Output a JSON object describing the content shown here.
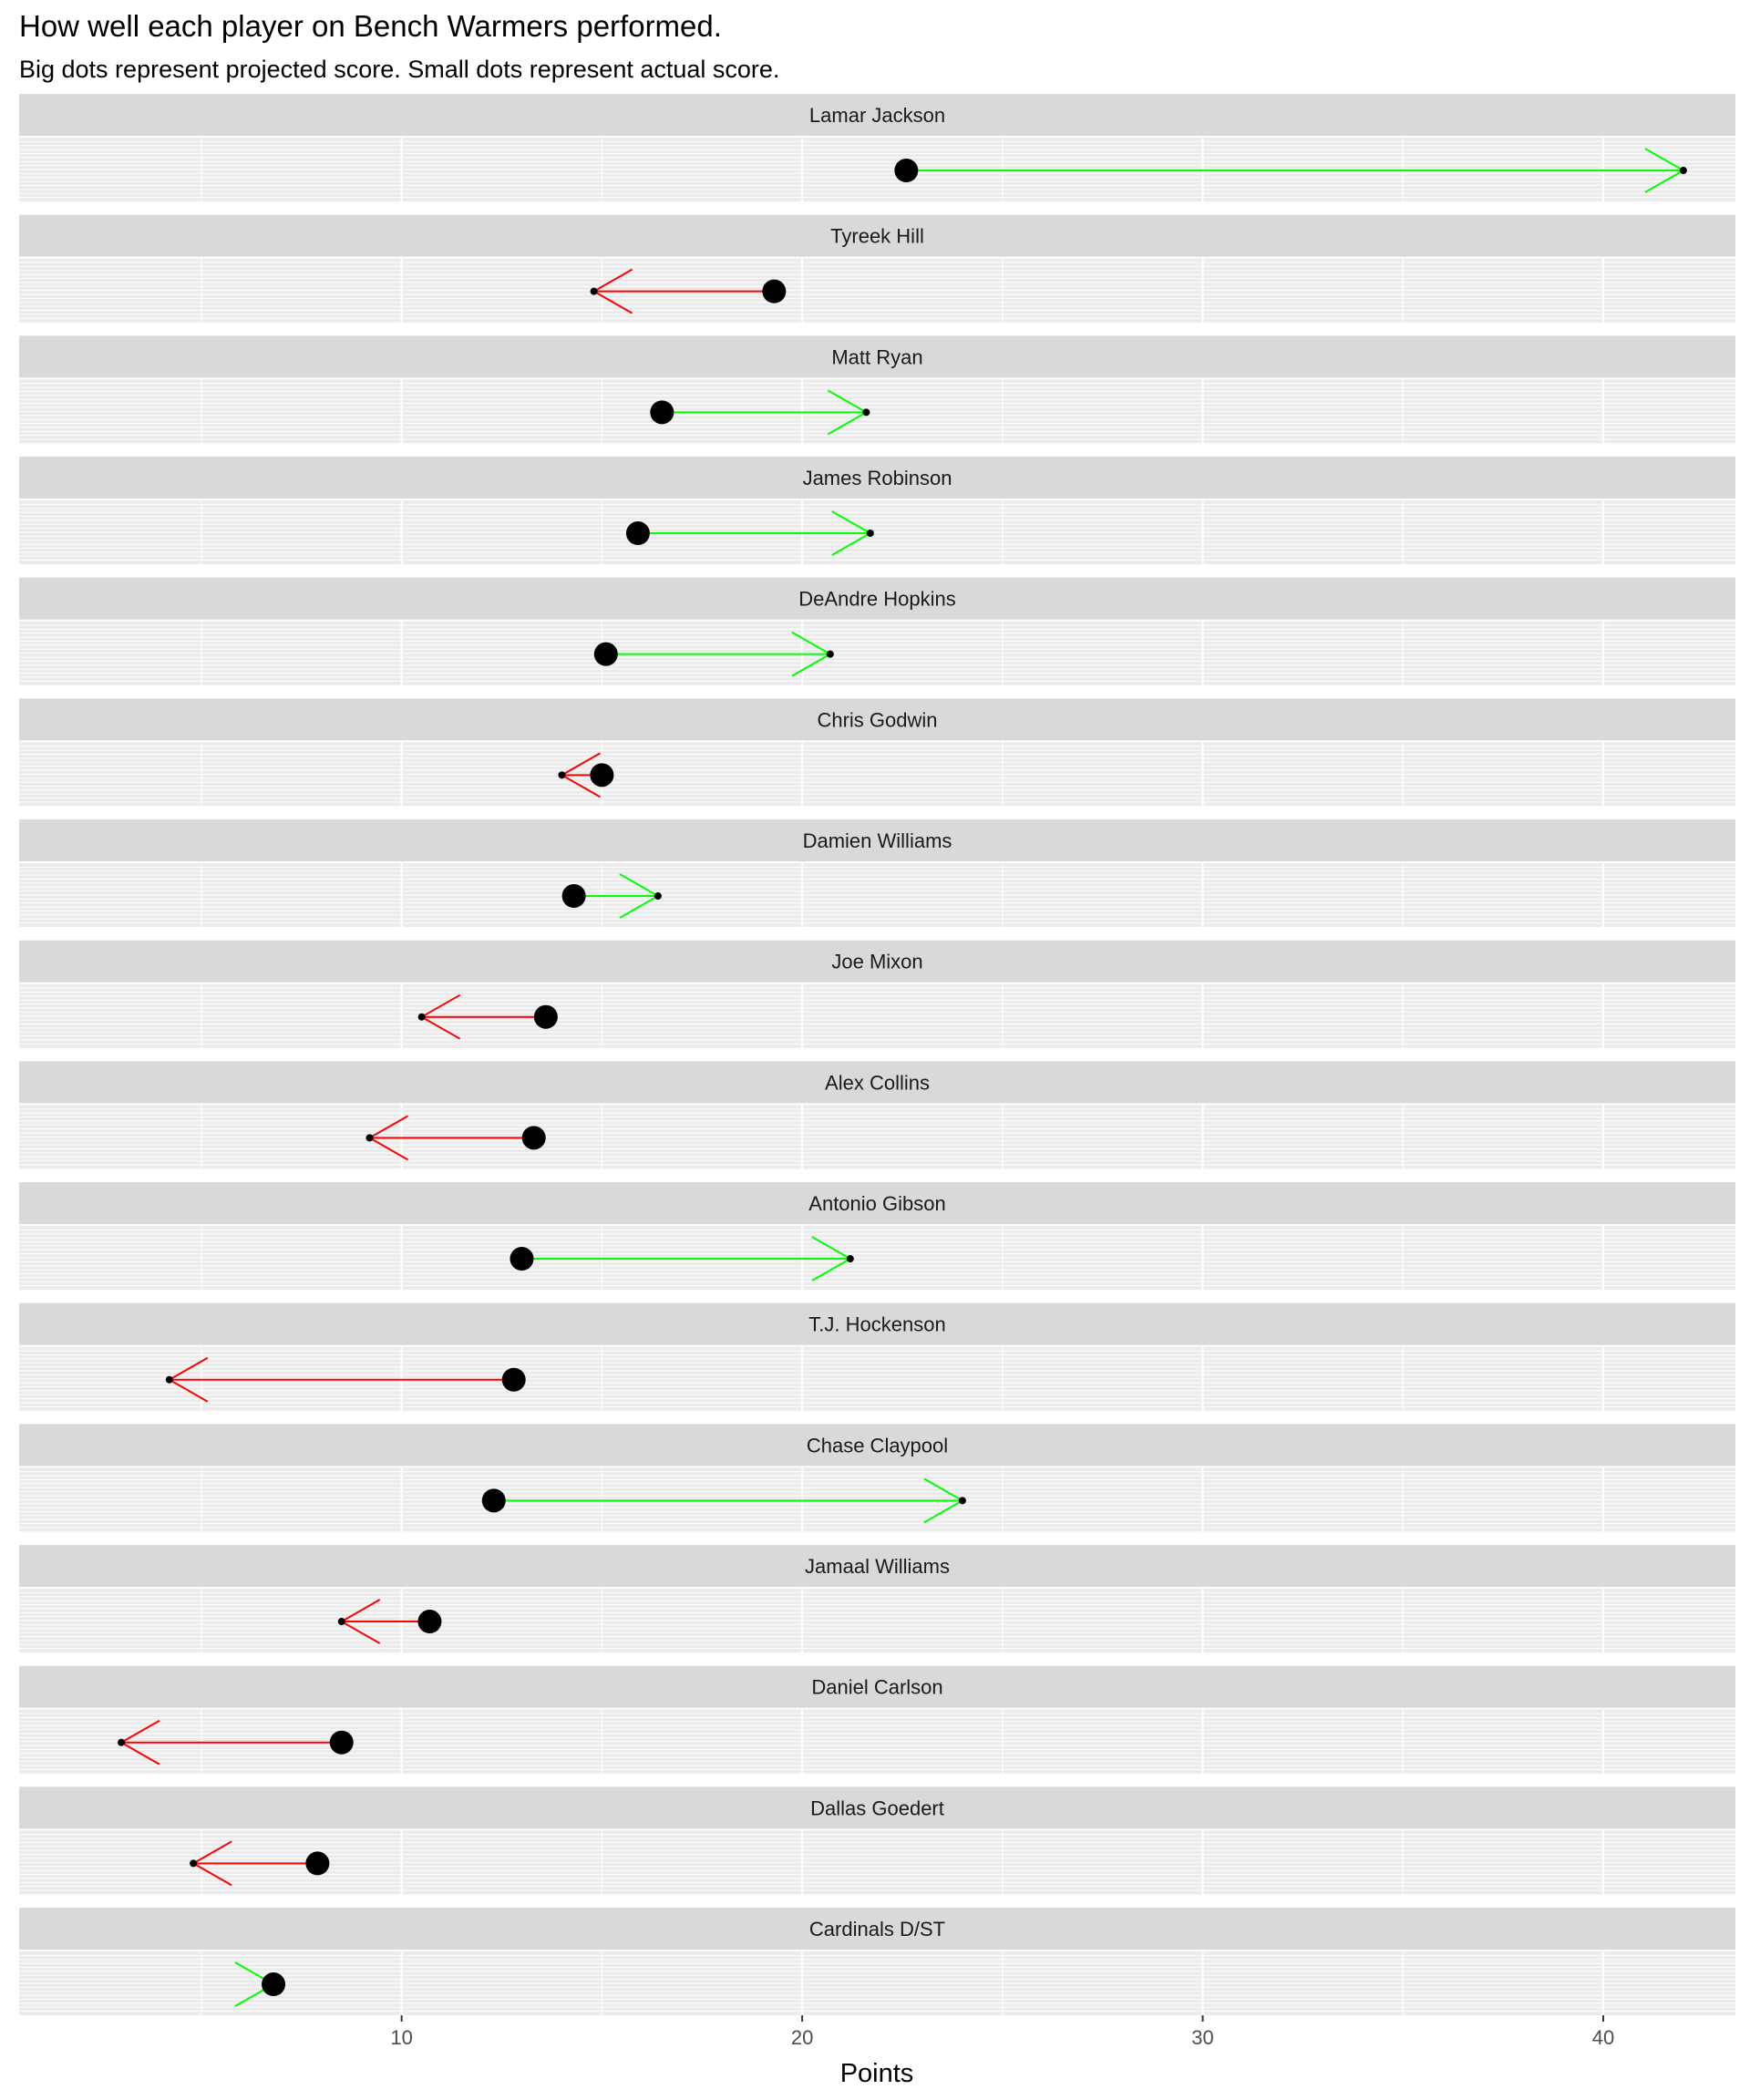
{
  "chart_data": {
    "type": "scatter",
    "title": "How well each player on Bench Warmers performed.",
    "subtitle": "Big dots represent projected score.  Small dots represent actual score.",
    "xlabel": "Points",
    "xlim": [
      0.45,
      43.3
    ],
    "x_ticks": [
      10,
      20,
      30,
      40
    ],
    "x_tick_labels": [
      "10",
      "20",
      "30",
      "40"
    ],
    "colors": {
      "above_projection": "#00ff00",
      "below_projection": "#ff0000",
      "panel_bg": "#ebebeb",
      "strip_bg": "#d9d9d9",
      "grid": "#ffffff"
    },
    "players": [
      {
        "name": "Lamar Jackson",
        "projected": 22.6,
        "actual": 42.0
      },
      {
        "name": "Tyreek Hill",
        "projected": 19.3,
        "actual": 14.8
      },
      {
        "name": "Matt Ryan",
        "projected": 16.5,
        "actual": 21.6
      },
      {
        "name": "James Robinson",
        "projected": 15.9,
        "actual": 21.7
      },
      {
        "name": "DeAndre Hopkins",
        "projected": 15.1,
        "actual": 20.7
      },
      {
        "name": "Chris Godwin",
        "projected": 15.0,
        "actual": 14.0
      },
      {
        "name": "Damien Williams",
        "projected": 14.3,
        "actual": 16.4
      },
      {
        "name": "Joe Mixon",
        "projected": 13.6,
        "actual": 10.5
      },
      {
        "name": "Alex Collins",
        "projected": 13.3,
        "actual": 9.2
      },
      {
        "name": "Antonio Gibson",
        "projected": 13.0,
        "actual": 21.2
      },
      {
        "name": "T.J. Hockenson",
        "projected": 12.8,
        "actual": 4.2
      },
      {
        "name": "Chase Claypool",
        "projected": 12.3,
        "actual": 24.0
      },
      {
        "name": "Jamaal Williams",
        "projected": 10.7,
        "actual": 8.5
      },
      {
        "name": "Daniel Carlson",
        "projected": 8.5,
        "actual": 3.0
      },
      {
        "name": "Dallas Goedert",
        "projected": 7.9,
        "actual": 4.8
      },
      {
        "name": "Cardinals D/ST",
        "projected": 6.8,
        "actual": 6.8
      }
    ]
  }
}
